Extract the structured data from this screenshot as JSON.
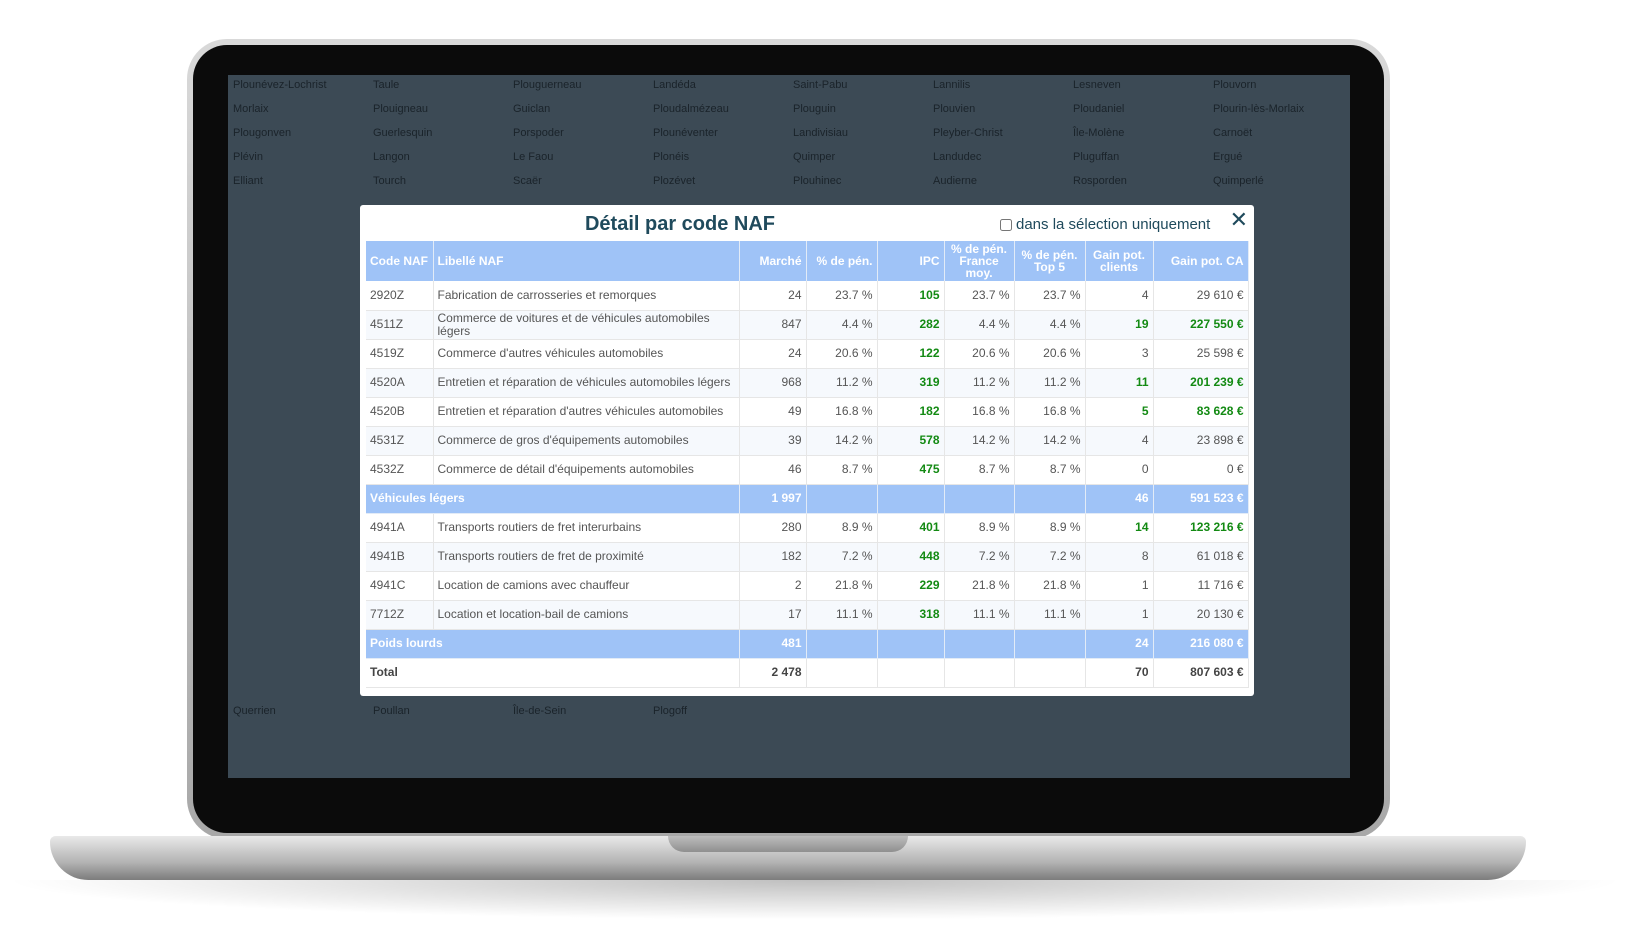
{
  "map": {
    "labels": [
      "Plounévez-Lochrist",
      "Taule",
      "Plouguerneau",
      "Landéda",
      "Saint-Pabu",
      "Lannilis",
      "Lesneven",
      "Plouvorn",
      "Morlaix",
      "Plouigneau",
      "Guiclan",
      "Ploudalmézeau",
      "Plouguin",
      "Plouvien",
      "Ploudaniel",
      "Plourin-lès-Morlaix",
      "Plougonven",
      "Guerlesquin",
      "Porspoder",
      "Plounéventer",
      "Landivisiau",
      "Pleyber-Christ",
      "Île-Molène",
      "Carnoët",
      "Plévin",
      "Langon",
      "Le Faou",
      "Plonéis",
      "Quimper",
      "Landudec",
      "Pluguffan",
      "Ergué",
      "Elliant",
      "Tourch",
      "Scaër",
      "Plozévet",
      "Plouhinec",
      "Audierne",
      "Rosporden",
      "Quimperlé",
      "Querrien",
      "Poullan",
      "Île-de-Sein",
      "Plogoff"
    ]
  },
  "modal": {
    "title": "Détail par code NAF",
    "checkbox_label": "dans la sélection uniquement",
    "checkbox_checked": false,
    "close_icon": "close-x-icon",
    "colors": {
      "header": "#9fc3f7",
      "highlight": "#138a13",
      "title": "#1f4a5c"
    },
    "columns": [
      "Code NAF",
      "Libellé NAF",
      "Marché",
      "% de pén.",
      "IPC",
      "% de pén. France moy.",
      "% de pén. Top 5",
      "Gain pot. clients",
      "Gain pot. CA"
    ],
    "rows": [
      {
        "type": "row",
        "code": "2920Z",
        "label": "Fabrication de carrosseries et remorques",
        "marche": "24",
        "pen": "23.7 %",
        "ipc": "105",
        "france": "23.7 %",
        "top5": "23.7 %",
        "clients": "4",
        "ca": "29 610 €",
        "hl": false
      },
      {
        "type": "row",
        "code": "4511Z",
        "label": "Commerce de voitures et de véhicules automobiles légers",
        "marche": "847",
        "pen": "4.4 %",
        "ipc": "282",
        "france": "4.4 %",
        "top5": "4.4 %",
        "clients": "19",
        "ca": "227 550 €",
        "hl": true
      },
      {
        "type": "row",
        "code": "4519Z",
        "label": "Commerce d'autres véhicules automobiles",
        "marche": "24",
        "pen": "20.6 %",
        "ipc": "122",
        "france": "20.6 %",
        "top5": "20.6 %",
        "clients": "3",
        "ca": "25 598 €",
        "hl": false
      },
      {
        "type": "row",
        "code": "4520A",
        "label": "Entretien et réparation de véhicules automobiles légers",
        "marche": "968",
        "pen": "11.2 %",
        "ipc": "319",
        "france": "11.2 %",
        "top5": "11.2 %",
        "clients": "11",
        "ca": "201 239 €",
        "hl": true
      },
      {
        "type": "row",
        "code": "4520B",
        "label": "Entretien et réparation d'autres véhicules automobiles",
        "marche": "49",
        "pen": "16.8 %",
        "ipc": "182",
        "france": "16.8 %",
        "top5": "16.8 %",
        "clients": "5",
        "ca": "83 628 €",
        "hl": true
      },
      {
        "type": "row",
        "code": "4531Z",
        "label": "Commerce de gros d'équipements automobiles",
        "marche": "39",
        "pen": "14.2 %",
        "ipc": "578",
        "france": "14.2 %",
        "top5": "14.2 %",
        "clients": "4",
        "ca": "23 898 €",
        "hl": false
      },
      {
        "type": "row",
        "code": "4532Z",
        "label": "Commerce de détail d'équipements automobiles",
        "marche": "46",
        "pen": "8.7 %",
        "ipc": "475",
        "france": "8.7 %",
        "top5": "8.7 %",
        "clients": "0",
        "ca": "0 €",
        "hl": false
      },
      {
        "type": "grp",
        "label": "Véhicules légers",
        "marche": "1 997",
        "clients": "46",
        "ca": "591 523 €"
      },
      {
        "type": "row",
        "code": "4941A",
        "label": "Transports routiers de fret interurbains",
        "marche": "280",
        "pen": "8.9 %",
        "ipc": "401",
        "france": "8.9 %",
        "top5": "8.9 %",
        "clients": "14",
        "ca": "123 216 €",
        "hl": true
      },
      {
        "type": "row",
        "code": "4941B",
        "label": "Transports routiers de fret de proximité",
        "marche": "182",
        "pen": "7.2 %",
        "ipc": "448",
        "france": "7.2 %",
        "top5": "7.2 %",
        "clients": "8",
        "ca": "61 018 €",
        "hl": false
      },
      {
        "type": "row",
        "code": "4941C",
        "label": "Location de camions avec chauffeur",
        "marche": "2",
        "pen": "21.8 %",
        "ipc": "229",
        "france": "21.8 %",
        "top5": "21.8 %",
        "clients": "1",
        "ca": "11 716 €",
        "hl": false
      },
      {
        "type": "row",
        "code": "7712Z",
        "label": "Location et location-bail de camions",
        "marche": "17",
        "pen": "11.1 %",
        "ipc": "318",
        "france": "11.1 %",
        "top5": "11.1 %",
        "clients": "1",
        "ca": "20 130 €",
        "hl": false
      },
      {
        "type": "grp",
        "label": "Poids lourds",
        "marche": "481",
        "clients": "24",
        "ca": "216 080 €"
      },
      {
        "type": "tot",
        "label": "Total",
        "marche": "2 478",
        "clients": "70",
        "ca": "807 603 €"
      }
    ]
  }
}
